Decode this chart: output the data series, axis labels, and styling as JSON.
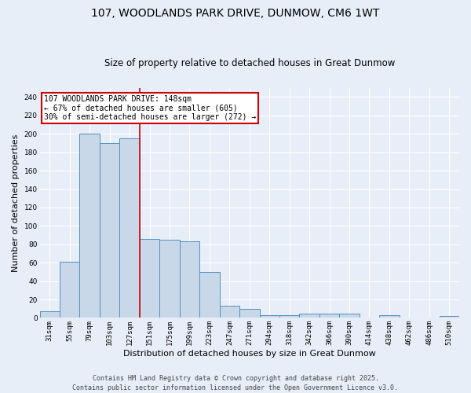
{
  "title_line1": "107, WOODLANDS PARK DRIVE, DUNMOW, CM6 1WT",
  "title_line2": "Size of property relative to detached houses in Great Dunmow",
  "xlabel": "Distribution of detached houses by size in Great Dunmow",
  "ylabel": "Number of detached properties",
  "categories": [
    "31sqm",
    "55sqm",
    "79sqm",
    "103sqm",
    "127sqm",
    "151sqm",
    "175sqm",
    "199sqm",
    "223sqm",
    "247sqm",
    "271sqm",
    "294sqm",
    "318sqm",
    "342sqm",
    "366sqm",
    "390sqm",
    "414sqm",
    "438sqm",
    "462sqm",
    "486sqm",
    "510sqm"
  ],
  "values": [
    7,
    61,
    200,
    190,
    195,
    86,
    85,
    83,
    50,
    13,
    10,
    3,
    3,
    5,
    5,
    5,
    0,
    3,
    0,
    0,
    2
  ],
  "bar_color": "#c8d8e8",
  "bar_edge_color": "#5090c0",
  "background_color": "#e8eef8",
  "grid_color": "#ffffff",
  "redline_index": 5,
  "annotation_text": "107 WOODLANDS PARK DRIVE: 148sqm\n← 67% of detached houses are smaller (605)\n30% of semi-detached houses are larger (272) →",
  "annotation_box_color": "#ffffff",
  "annotation_box_edge": "#cc0000",
  "ylim": [
    0,
    250
  ],
  "yticks": [
    0,
    20,
    40,
    60,
    80,
    100,
    120,
    140,
    160,
    180,
    200,
    220,
    240
  ],
  "footer_line1": "Contains HM Land Registry data © Crown copyright and database right 2025.",
  "footer_line2": "Contains public sector information licensed under the Open Government Licence v3.0.",
  "redline_color": "#cc0000",
  "title1_fontsize": 10,
  "title2_fontsize": 8.5,
  "ylabel_fontsize": 8,
  "xlabel_fontsize": 8,
  "tick_fontsize": 6.5,
  "annot_fontsize": 7,
  "footer_fontsize": 6
}
